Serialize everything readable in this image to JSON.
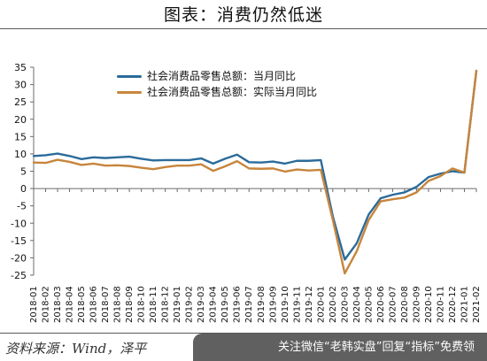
{
  "header": {
    "title": "图表：消费仍然低迷"
  },
  "footer": {
    "source": "资料来源：Wind，泽平",
    "watermark": "关注微信“老韩实盘”回复“指标”免费领"
  },
  "chart_data": {
    "type": "line",
    "title": "",
    "xlabel": "",
    "ylabel": "",
    "ylim": [
      -25,
      35
    ],
    "yticks": [
      35,
      30,
      25,
      20,
      15,
      10,
      5,
      0,
      -5,
      -10,
      -15,
      -20,
      -25
    ],
    "grid": false,
    "legend_position": "top-left",
    "x": [
      "2018-01",
      "2018-02",
      "2018-03",
      "2018-04",
      "2018-05",
      "2018-06",
      "2018-07",
      "2018-08",
      "2018-09",
      "2018-10",
      "2018-11",
      "2018-12",
      "2019-01",
      "2019-02",
      "2019-03",
      "2019-04",
      "2019-05",
      "2019-06",
      "2019-07",
      "2019-08",
      "2019-09",
      "2019-10",
      "2019-11",
      "2019-12",
      "2020-01",
      "2020-02",
      "2020-03",
      "2020-04",
      "2020-05",
      "2020-06",
      "2020-07",
      "2020-08",
      "2020-09",
      "2020-10",
      "2020-11",
      "2020-12",
      "2021-01",
      "2021-02"
    ],
    "series": [
      {
        "name": "社会消费品零售总额：当月同比",
        "color": "#2b6b9a",
        "values": [
          9.4,
          9.6,
          10.1,
          9.4,
          8.5,
          9.0,
          8.8,
          9.0,
          9.2,
          8.6,
          8.1,
          8.2,
          8.2,
          8.2,
          8.7,
          7.2,
          8.6,
          9.8,
          7.6,
          7.5,
          7.8,
          7.2,
          8.0,
          8.0,
          8.2,
          -8.0,
          -20.5,
          -15.8,
          -7.5,
          -2.8,
          -1.8,
          -1.1,
          0.5,
          3.3,
          4.3,
          5.0,
          4.6,
          34.0
        ]
      },
      {
        "name": "社会消费品零售总额：实际当月同比",
        "color": "#c7853c",
        "values": [
          7.5,
          7.4,
          8.3,
          7.7,
          6.8,
          7.2,
          6.6,
          6.7,
          6.5,
          6.0,
          5.6,
          6.2,
          6.6,
          6.6,
          7.0,
          5.1,
          6.4,
          7.9,
          5.8,
          5.7,
          5.8,
          4.9,
          5.5,
          5.2,
          5.4,
          -9.0,
          -24.5,
          -18.1,
          -9.1,
          -3.7,
          -3.1,
          -2.6,
          -1.1,
          2.2,
          3.6,
          5.8,
          4.6,
          34.0
        ]
      }
    ]
  }
}
